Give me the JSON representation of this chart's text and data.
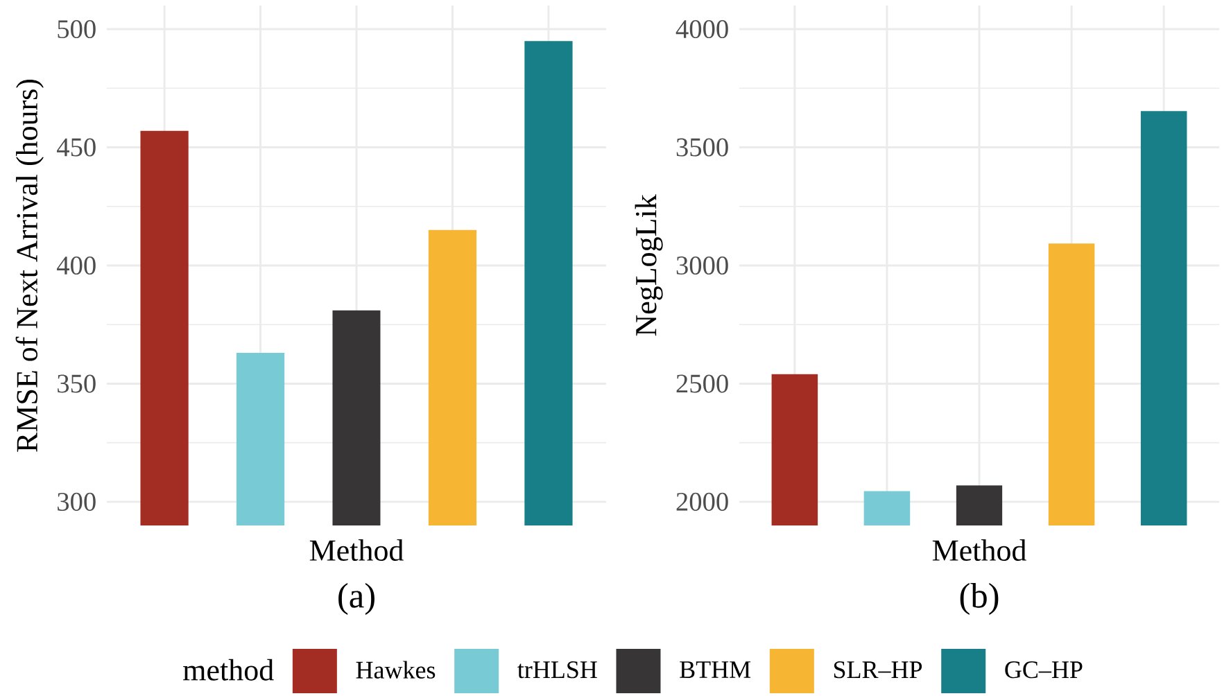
{
  "chart_data": [
    {
      "type": "bar",
      "categories": [
        null,
        null,
        null,
        null,
        null
      ],
      "series": [
        {
          "name": "Hawkes",
          "color": "#a32d22",
          "values": [
            457,
            null,
            null,
            null,
            null
          ]
        },
        {
          "name": "trHLSH",
          "color": "#78cad4",
          "values": [
            null,
            363,
            null,
            null,
            null
          ]
        },
        {
          "name": "BTHM",
          "color": "#373536",
          "values": [
            null,
            null,
            381,
            null,
            null
          ]
        },
        {
          "name": "SLR–HP",
          "color": "#f6b533",
          "values": [
            null,
            null,
            null,
            415,
            null
          ]
        },
        {
          "name": "GC–HP",
          "color": "#187e87",
          "values": [
            null,
            null,
            null,
            null,
            495
          ]
        }
      ],
      "ylim": [
        290,
        510
      ],
      "yticks": [
        300,
        {
          "value": 325,
          "label": null
        },
        350,
        {
          "value": 375,
          "label": null
        },
        400,
        {
          "value": 425,
          "label": null
        },
        450,
        {
          "value": 475,
          "label": null
        },
        500
      ],
      "xlabel": "Method",
      "ylabel": "RMSE of Next Arrival (hours)",
      "annotations": [
        "(a)"
      ],
      "grid": true,
      "tick_labels": "y",
      "legend": "bottom",
      "legend_title": "method"
    },
    {
      "type": "bar",
      "categories": [
        null,
        null,
        null,
        null,
        null
      ],
      "values": [
        2540,
        2045,
        2069,
        3093,
        3653
      ],
      "colors": [
        "#a32d22",
        "#78cad4",
        "#373536",
        "#f6b533",
        "#187e87"
      ],
      "ylim": [
        1900,
        4100
      ],
      "yticks": [
        2000,
        {
          "value": 2250,
          "label": null
        },
        2500,
        {
          "value": 2750,
          "label": null
        },
        3000,
        {
          "value": 3250,
          "label": null
        },
        3500,
        {
          "value": 3750,
          "label": null
        },
        4000
      ],
      "xlabel": "Method",
      "ylabel": "NegLogLik",
      "annotations": [
        "(b)"
      ],
      "grid": true,
      "tick_labels": "y"
    }
  ]
}
